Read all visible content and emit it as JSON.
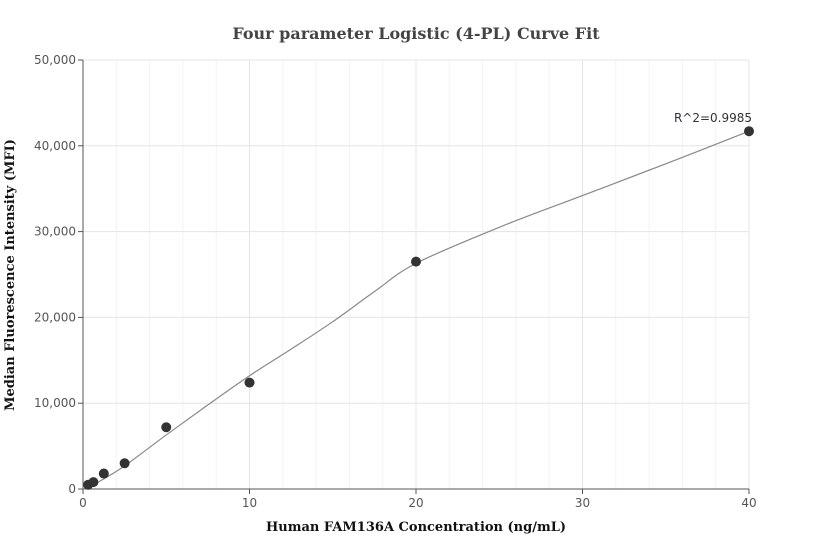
{
  "chart_data": {
    "type": "scatter",
    "title": "Four parameter Logistic (4-PL) Curve Fit",
    "xlabel": "Human FAM136A Concentration (ng/mL)",
    "ylabel": "Median Fluorescence Intensity (MFI)",
    "xlim": [
      0,
      40
    ],
    "ylim": [
      0,
      50000
    ],
    "x_ticks": [
      0,
      10,
      20,
      30,
      40
    ],
    "y_ticks": [
      0,
      10000,
      20000,
      30000,
      40000,
      50000
    ],
    "x_tick_labels": [
      "0",
      "10",
      "20",
      "30",
      "40"
    ],
    "y_tick_labels": [
      "0",
      "10,000",
      "20,000",
      "30,000",
      "40,000",
      "50,000"
    ],
    "grid": true,
    "legend": false,
    "series": [
      {
        "points": [
          {
            "x": 0.3125,
            "y": 500
          },
          {
            "x": 0.625,
            "y": 800
          },
          {
            "x": 1.25,
            "y": 1800
          },
          {
            "x": 2.5,
            "y": 3000
          },
          {
            "x": 5,
            "y": 7200
          },
          {
            "x": 10,
            "y": 12400
          },
          {
            "x": 20,
            "y": 26500
          },
          {
            "x": 40,
            "y": 41700
          }
        ],
        "fit_curve": [
          {
            "x": 0,
            "y": 0
          },
          {
            "x": 1,
            "y": 900
          },
          {
            "x": 2.5,
            "y": 2700
          },
          {
            "x": 5,
            "y": 6300
          },
          {
            "x": 7.5,
            "y": 9800
          },
          {
            "x": 10,
            "y": 13200
          },
          {
            "x": 12.5,
            "y": 16300
          },
          {
            "x": 15,
            "y": 19500
          },
          {
            "x": 17.5,
            "y": 23000
          },
          {
            "x": 20,
            "y": 26300
          },
          {
            "x": 25,
            "y": 30500
          },
          {
            "x": 30,
            "y": 34200
          },
          {
            "x": 35,
            "y": 37900
          },
          {
            "x": 40,
            "y": 41700
          }
        ]
      }
    ],
    "annotations": [
      {
        "text": "R^2=0.9985",
        "x": 40,
        "y": 41700
      }
    ],
    "colors": {
      "point": "#333333",
      "curve": "#888888",
      "grid": "#e3e3ec"
    }
  }
}
